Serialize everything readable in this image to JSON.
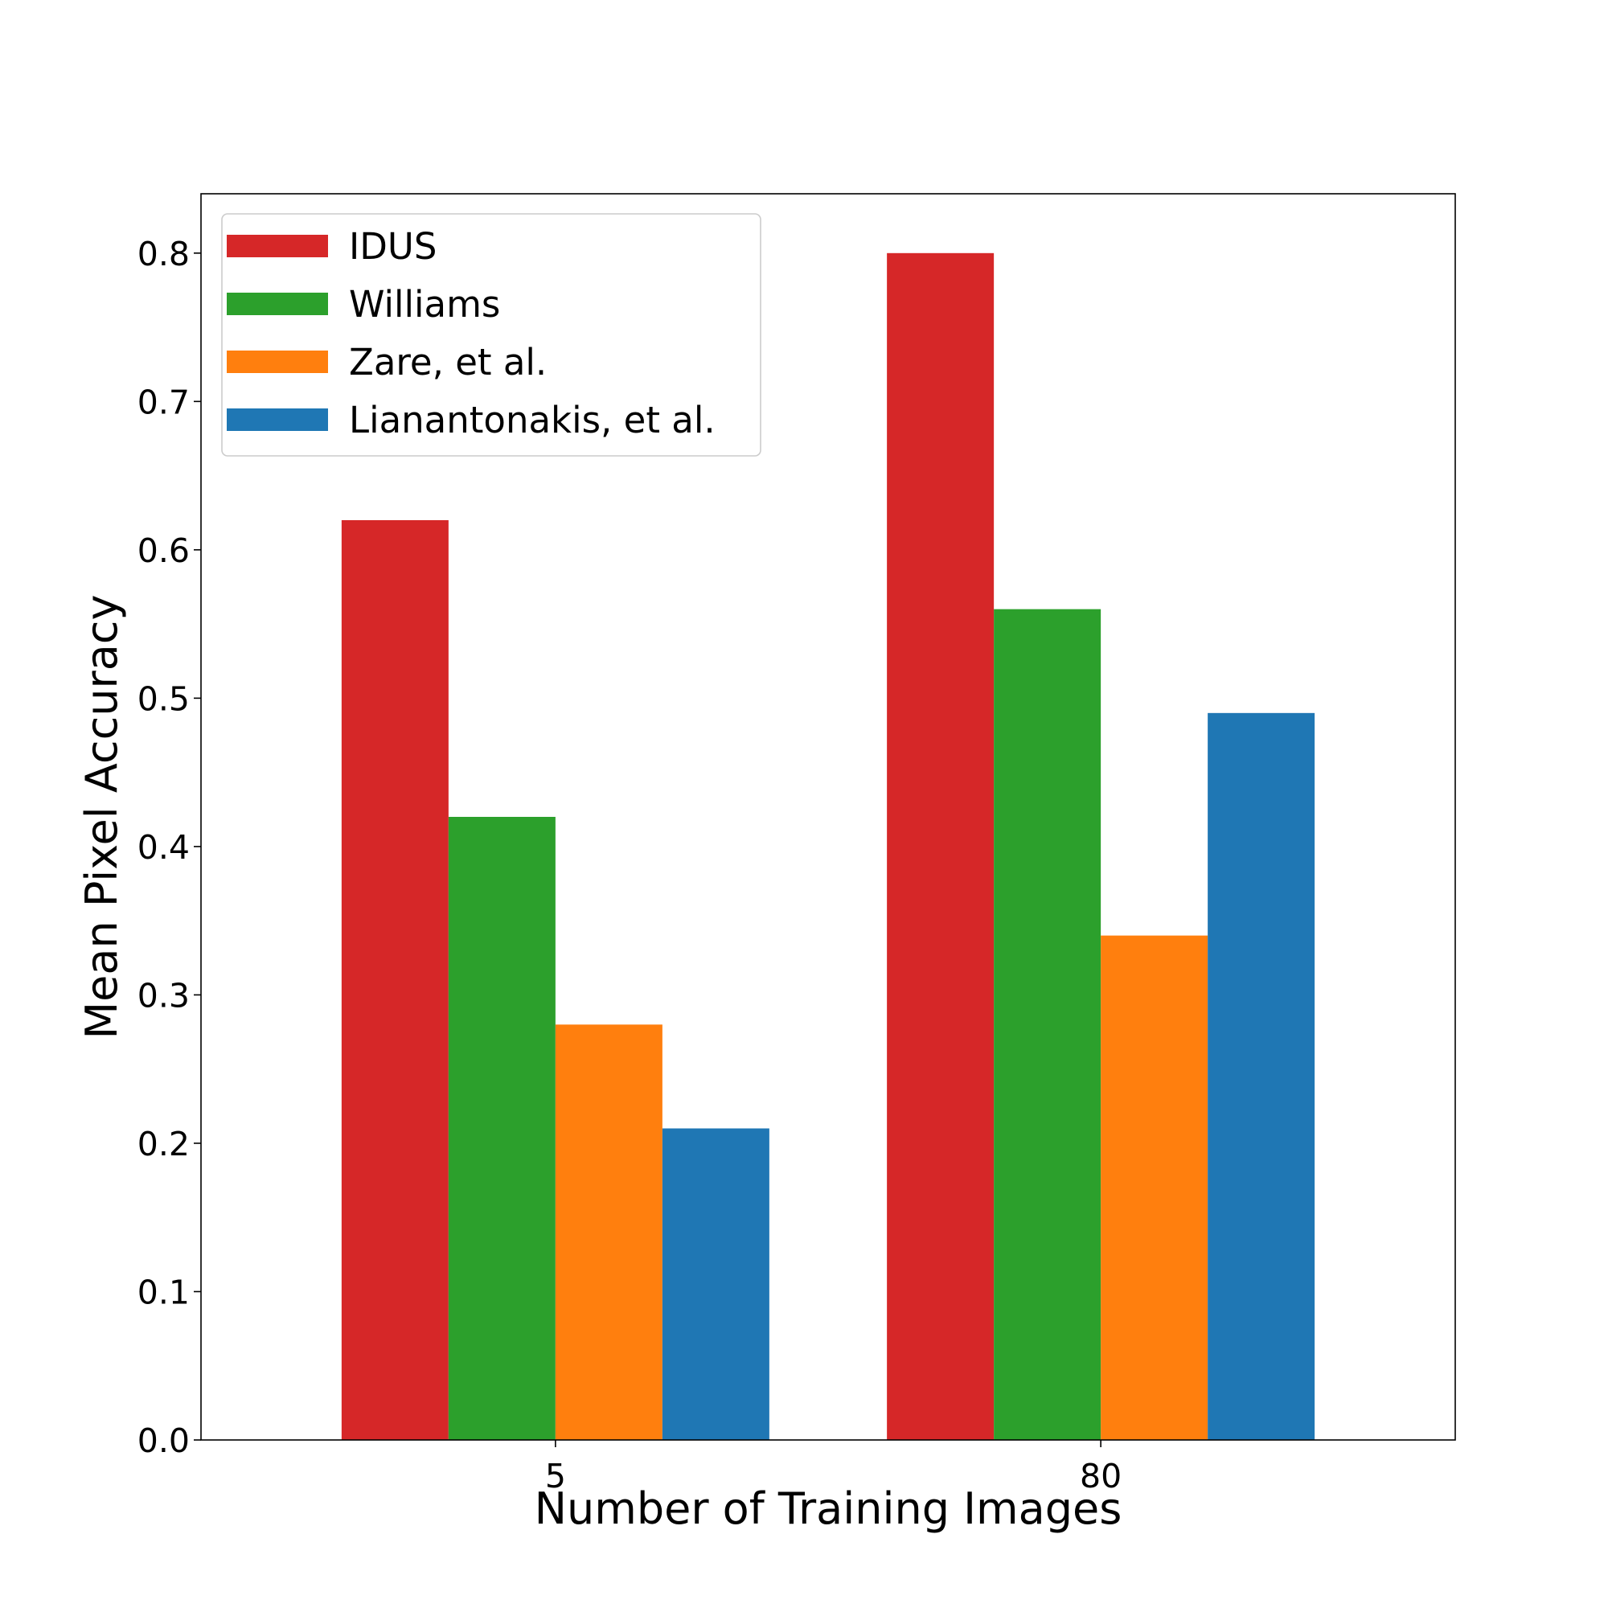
{
  "chart_data": {
    "type": "bar",
    "title": "",
    "xlabel": "Number of Training Images",
    "ylabel": "Mean Pixel Accuracy",
    "categories": [
      "5",
      "80"
    ],
    "series": [
      {
        "name": "IDUS",
        "color": "#d62728",
        "values": [
          0.62,
          0.8
        ]
      },
      {
        "name": "Williams",
        "color": "#2ca02c",
        "values": [
          0.42,
          0.56
        ]
      },
      {
        "name": "Zare, et al.",
        "color": "#ff7f0e",
        "values": [
          0.28,
          0.34
        ]
      },
      {
        "name": "Lianantonakis, et al.",
        "color": "#1f77b4",
        "values": [
          0.21,
          0.49
        ]
      }
    ],
    "ylim": [
      0,
      0.84
    ],
    "yticks": [
      "0.0",
      "0.1",
      "0.2",
      "0.3",
      "0.4",
      "0.5",
      "0.6",
      "0.7",
      "0.8"
    ],
    "grid": false,
    "legend_position": "upper-left"
  }
}
